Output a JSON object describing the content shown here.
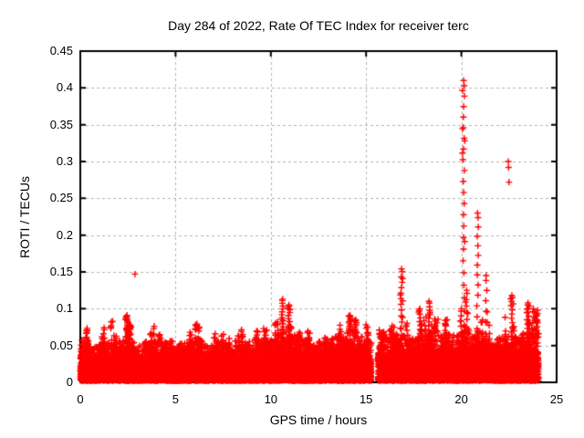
{
  "chart_data": {
    "type": "scatter",
    "title": "Day 284 of 2022, Rate Of TEC Index for receiver terc",
    "xlabel": "GPS time / hours",
    "ylabel": "ROTI / TECUs",
    "xlim": [
      0,
      25
    ],
    "ylim": [
      0,
      0.45
    ],
    "xticks": {
      "values": [
        0,
        5,
        10,
        15,
        20,
        25
      ],
      "labels": [
        "0",
        "5",
        "10",
        "15",
        "20",
        "25"
      ]
    },
    "yticks": {
      "values": [
        0,
        0.05,
        0.1,
        0.15,
        0.2,
        0.25,
        0.3,
        0.35,
        0.4,
        0.45
      ],
      "labels": [
        "0",
        "0.05",
        "0.1",
        "0.15",
        "0.2",
        "0.25",
        "0.3",
        "0.35",
        "0.4",
        "0.45"
      ]
    },
    "grid": "dashed-gray-at-every-tick",
    "legend": "none",
    "marker": "plus",
    "marker_color": "#ff0000",
    "grid_color": "#b3b3b3",
    "frame_color": "#000000",
    "data_start_hour": 0.0,
    "data_end_hour": 24.05,
    "data_gaps": [
      [
        15.28,
        15.62
      ]
    ],
    "band_floor": 0.002,
    "band_envelope": [
      [
        0,
        0.052
      ],
      [
        0.3,
        0.056
      ],
      [
        0.6,
        0.04
      ],
      [
        0.9,
        0.046
      ],
      [
        1.2,
        0.058
      ],
      [
        1.5,
        0.05
      ],
      [
        1.9,
        0.06
      ],
      [
        2.2,
        0.046
      ],
      [
        2.45,
        0.068
      ],
      [
        2.7,
        0.05
      ],
      [
        3.0,
        0.048
      ],
      [
        3.4,
        0.043
      ],
      [
        3.8,
        0.05
      ],
      [
        4.2,
        0.052
      ],
      [
        4.6,
        0.046
      ],
      [
        5.0,
        0.042
      ],
      [
        5.4,
        0.05
      ],
      [
        5.8,
        0.048
      ],
      [
        6.1,
        0.056
      ],
      [
        6.4,
        0.052
      ],
      [
        6.8,
        0.044
      ],
      [
        7.2,
        0.047
      ],
      [
        7.6,
        0.05
      ],
      [
        8.0,
        0.042
      ],
      [
        8.4,
        0.047
      ],
      [
        8.8,
        0.052
      ],
      [
        9.2,
        0.045
      ],
      [
        9.6,
        0.055
      ],
      [
        10.0,
        0.052
      ],
      [
        10.4,
        0.058
      ],
      [
        10.7,
        0.065
      ],
      [
        11.0,
        0.06
      ],
      [
        11.4,
        0.06
      ],
      [
        11.8,
        0.05
      ],
      [
        12.2,
        0.047
      ],
      [
        12.6,
        0.05
      ],
      [
        13.0,
        0.051
      ],
      [
        13.4,
        0.056
      ],
      [
        13.8,
        0.055
      ],
      [
        14.15,
        0.066
      ],
      [
        14.5,
        0.06
      ],
      [
        14.9,
        0.053
      ],
      [
        15.25,
        0.05
      ],
      [
        15.65,
        0.046
      ],
      [
        16.0,
        0.052
      ],
      [
        16.4,
        0.058
      ],
      [
        16.8,
        0.06
      ],
      [
        17.2,
        0.052
      ],
      [
        17.6,
        0.055
      ],
      [
        18.0,
        0.058
      ],
      [
        18.4,
        0.062
      ],
      [
        18.8,
        0.056
      ],
      [
        19.2,
        0.06
      ],
      [
        19.6,
        0.058
      ],
      [
        20.0,
        0.064
      ],
      [
        20.3,
        0.07
      ],
      [
        20.6,
        0.06
      ],
      [
        20.9,
        0.064
      ],
      [
        21.2,
        0.058
      ],
      [
        21.6,
        0.052
      ],
      [
        22.0,
        0.055
      ],
      [
        22.4,
        0.06
      ],
      [
        22.8,
        0.056
      ],
      [
        23.2,
        0.055
      ],
      [
        23.6,
        0.058
      ],
      [
        24.05,
        0.06
      ]
    ],
    "spike_columns": [
      {
        "x": 1.25,
        "top": 0.074,
        "n": 3
      },
      {
        "x": 2.45,
        "top": 0.091,
        "n": 10
      },
      {
        "x": 2.6,
        "top": 0.078,
        "n": 5
      },
      {
        "x": 9.62,
        "top": 0.073,
        "n": 2
      },
      {
        "x": 10.35,
        "top": 0.082,
        "n": 3
      },
      {
        "x": 10.62,
        "top": 0.113,
        "n": 12
      },
      {
        "x": 10.95,
        "top": 0.105,
        "n": 10
      },
      {
        "x": 11.5,
        "top": 0.068,
        "n": 3
      },
      {
        "x": 13.6,
        "top": 0.066,
        "n": 3
      },
      {
        "x": 14.15,
        "top": 0.091,
        "n": 12
      },
      {
        "x": 14.45,
        "top": 0.085,
        "n": 8
      },
      {
        "x": 15.1,
        "top": 0.066,
        "n": 3
      },
      {
        "x": 16.86,
        "top": 0.154,
        "n": 12
      },
      {
        "x": 17.15,
        "top": 0.08,
        "n": 4
      },
      {
        "x": 17.82,
        "top": 0.1,
        "n": 8
      },
      {
        "x": 18.3,
        "top": 0.11,
        "n": 9
      },
      {
        "x": 18.6,
        "top": 0.086,
        "n": 5
      },
      {
        "x": 19.15,
        "top": 0.08,
        "n": 3
      },
      {
        "x": 20.0,
        "top": 0.1,
        "n": 5
      },
      {
        "x": 20.12,
        "top": 0.41,
        "n": 22
      },
      {
        "x": 20.28,
        "top": 0.125,
        "n": 6
      },
      {
        "x": 20.85,
        "top": 0.23,
        "n": 12
      },
      {
        "x": 21.3,
        "top": 0.145,
        "n": 6
      },
      {
        "x": 22.65,
        "top": 0.118,
        "n": 10
      },
      {
        "x": 23.5,
        "top": 0.108,
        "n": 9
      },
      {
        "x": 23.78,
        "top": 0.1,
        "n": 5
      },
      {
        "x": 24.0,
        "top": 0.098,
        "n": 4
      }
    ],
    "outlier_points": [
      [
        2.87,
        0.147
      ],
      [
        22.46,
        0.3
      ],
      [
        22.48,
        0.292
      ],
      [
        22.5,
        0.272
      ]
    ]
  }
}
